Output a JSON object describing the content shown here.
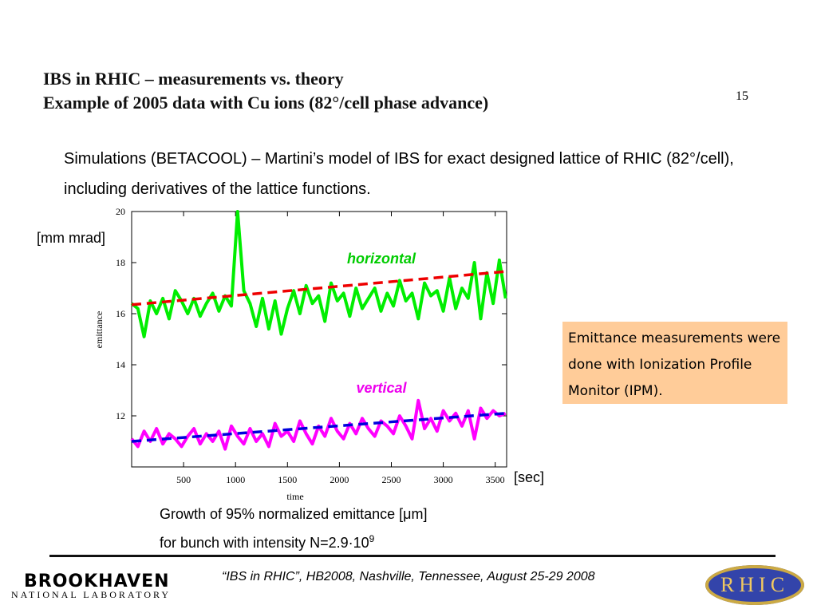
{
  "header": {
    "title": "IBS in RHIC – measurements vs. theory",
    "subtitle": "Example of 2005 data with Cu ions (82°/cell phase advance)",
    "page_number": "15"
  },
  "body": {
    "text": "Simulations (BETACOOL) – Martini’s model of IBS for exact designed lattice of RHIC (82°/cell), including derivatives of the lattice functions."
  },
  "note_box": {
    "text": "Emittance measurements were done with Ionization Profile Monitor (IPM)."
  },
  "caption": {
    "line1": "Growth of 95% normalized emittance [μm]",
    "line2": "for bunch with intensity N=2.9·10",
    "exponent": "9"
  },
  "footer": {
    "citation": "“IBS in RHIC”, HB2008, Nashville, Tennessee, August 25-29  2008",
    "logo_left": "BROOKHAVEN",
    "logo_left_sub": "NATIONAL LABORATORY",
    "logo_right": "RHIC"
  },
  "chart_data": {
    "type": "line",
    "x_label": "time",
    "y_label": "emittance",
    "y_unit": "[mm mrad]",
    "x_unit": "[sec]",
    "annotations": [
      "horizontal",
      "vertical"
    ],
    "xlim": [
      0,
      3610
    ],
    "ylim": [
      10,
      20
    ],
    "xticks": [
      500,
      1000,
      1500,
      2000,
      2500,
      3000,
      3500
    ],
    "yticks": [
      12,
      14,
      16,
      18,
      20
    ],
    "series": [
      {
        "name": "horizontal",
        "color": "#00ee00",
        "dashed": false,
        "x": [
          0,
          60,
          120,
          180,
          240,
          300,
          360,
          420,
          480,
          540,
          600,
          660,
          720,
          780,
          840,
          900,
          960,
          1020,
          1080,
          1140,
          1200,
          1260,
          1320,
          1380,
          1440,
          1500,
          1560,
          1620,
          1680,
          1740,
          1800,
          1860,
          1920,
          1980,
          2040,
          2100,
          2160,
          2220,
          2280,
          2340,
          2400,
          2460,
          2520,
          2580,
          2640,
          2700,
          2760,
          2820,
          2880,
          2940,
          3000,
          3060,
          3120,
          3180,
          3240,
          3300,
          3360,
          3420,
          3480,
          3540,
          3600
        ],
        "values": [
          16.4,
          16.2,
          15.1,
          16.5,
          16.0,
          16.6,
          15.8,
          16.9,
          16.5,
          16.0,
          16.6,
          15.9,
          16.4,
          16.8,
          16.1,
          16.7,
          16.3,
          20,
          16.9,
          16.4,
          15.5,
          16.6,
          15.4,
          16.5,
          15.2,
          16.2,
          16.9,
          16.0,
          17.1,
          16.4,
          16.7,
          15.7,
          17.2,
          16.5,
          16.8,
          15.9,
          17.0,
          16.2,
          16.6,
          17.0,
          16.1,
          16.8,
          16.3,
          17.3,
          16.5,
          16.8,
          15.8,
          17.2,
          16.7,
          16.9,
          16.1,
          17.4,
          16.2,
          17.0,
          16.6,
          18.0,
          15.8,
          17.6,
          16.4,
          18.1,
          16.6
        ]
      },
      {
        "name": "vertical",
        "color": "#ff00ff",
        "dashed": false,
        "x": [
          0,
          60,
          120,
          180,
          240,
          300,
          360,
          420,
          480,
          540,
          600,
          660,
          720,
          780,
          840,
          900,
          960,
          1020,
          1080,
          1140,
          1200,
          1260,
          1320,
          1380,
          1440,
          1500,
          1560,
          1620,
          1680,
          1740,
          1800,
          1860,
          1920,
          1980,
          2040,
          2100,
          2160,
          2220,
          2280,
          2340,
          2400,
          2460,
          2520,
          2580,
          2640,
          2700,
          2760,
          2820,
          2880,
          2940,
          3000,
          3060,
          3120,
          3180,
          3240,
          3300,
          3360,
          3420,
          3480,
          3540,
          3600
        ],
        "values": [
          11.1,
          10.8,
          11.4,
          11.0,
          11.5,
          10.9,
          11.3,
          11.1,
          10.8,
          11.2,
          11.5,
          10.9,
          11.3,
          11.0,
          11.4,
          10.7,
          11.6,
          11.2,
          10.9,
          11.5,
          11.0,
          11.3,
          10.8,
          11.7,
          11.2,
          11.4,
          11.0,
          11.8,
          11.3,
          10.9,
          11.6,
          11.2,
          11.9,
          11.4,
          11.1,
          11.7,
          11.3,
          11.9,
          11.5,
          11.2,
          11.8,
          11.6,
          11.3,
          12.0,
          11.6,
          11.1,
          12.6,
          11.5,
          11.9,
          11.4,
          12.2,
          11.8,
          12.1,
          11.6,
          12.2,
          11.1,
          12.3,
          11.9,
          12.2,
          12.0,
          12.1
        ]
      },
      {
        "name": "horizontal theory",
        "color": "#ee0000",
        "dashed": true,
        "x": [
          0,
          3600
        ],
        "values": [
          16.35,
          17.65
        ]
      },
      {
        "name": "vertical theory",
        "color": "#0000dd",
        "dashed": true,
        "x": [
          0,
          3600
        ],
        "values": [
          11.0,
          12.1
        ]
      }
    ]
  }
}
